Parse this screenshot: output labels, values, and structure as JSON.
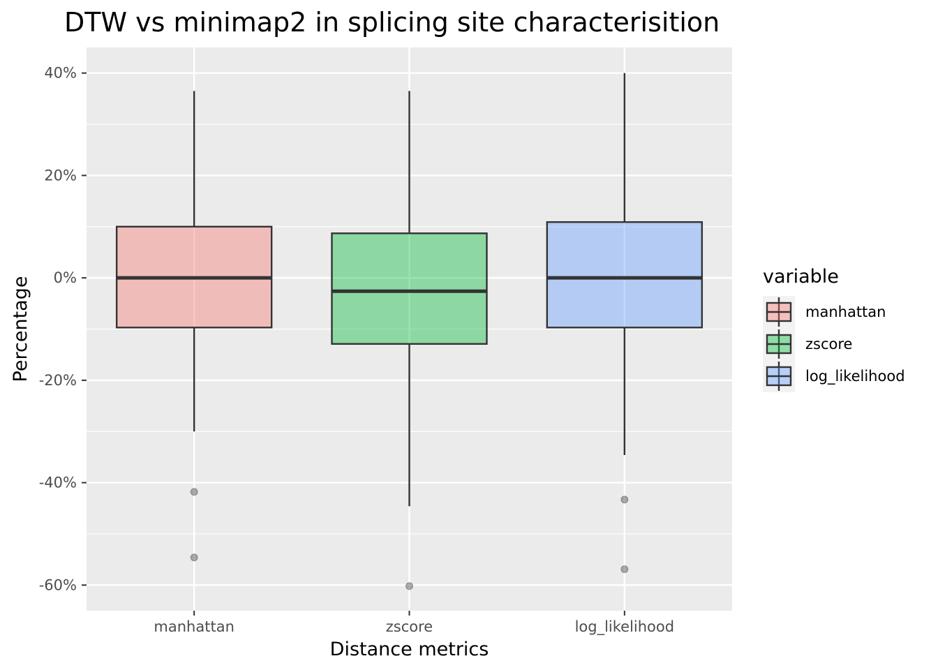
{
  "chart_data": {
    "type": "boxplot",
    "title": "DTW vs minimap2 in splicing site characterisition",
    "xlabel": "Distance metrics",
    "ylabel": "Percentage",
    "ylim": [
      -65,
      45
    ],
    "yticks": [
      40,
      20,
      0,
      -20,
      -40,
      -60
    ],
    "ytick_labels": [
      "40%",
      "20%",
      "0%",
      "-20%",
      "-40%",
      "-60%"
    ],
    "categories": [
      "manhattan",
      "zscore",
      "log_likelihood"
    ],
    "series": [
      {
        "name": "manhattan",
        "color": "#F8766D",
        "whisker_low": -30,
        "q1": -9.7,
        "median": 0,
        "q3": 10,
        "whisker_high": 36.5,
        "outliers": [
          -41.8,
          -54.6
        ]
      },
      {
        "name": "zscore",
        "color": "#00BA38",
        "whisker_low": -44.6,
        "q1": -12.9,
        "median": -2.6,
        "q3": 8.7,
        "whisker_high": 36.5,
        "outliers": [
          -60.2
        ]
      },
      {
        "name": "log_likelihood",
        "color": "#619CFF",
        "whisker_low": -34.6,
        "q1": -9.7,
        "median": 0,
        "q3": 10.9,
        "whisker_high": 40,
        "outliers": [
          -43.3,
          -56.9
        ]
      }
    ],
    "legend": {
      "title": "variable",
      "position": "right"
    },
    "grid": true,
    "panel_background": "#EBEBEB",
    "box_alpha": 0.4
  }
}
